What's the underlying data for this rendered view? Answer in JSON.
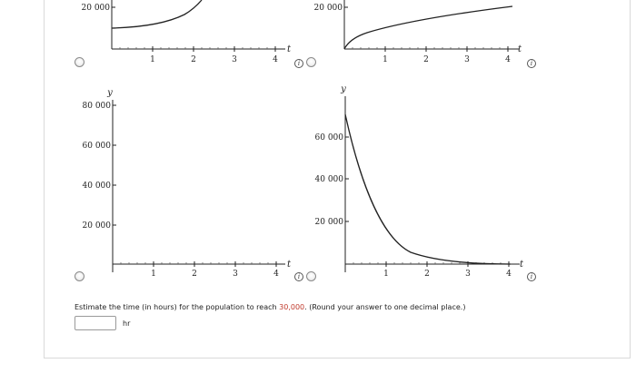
{
  "graphs": [
    {
      "id": "a",
      "y_axis_label": "",
      "x_axis_label": "t",
      "y_ticks": [
        "20 000"
      ],
      "x_ticks": [
        "1",
        "2",
        "3",
        "4"
      ],
      "curve": "increasing-exponential"
    },
    {
      "id": "b",
      "y_axis_label": "",
      "x_axis_label": "t",
      "y_ticks": [
        "20 000"
      ],
      "x_ticks": [
        "1",
        "2",
        "3",
        "4"
      ],
      "curve": "increasing-concave"
    },
    {
      "id": "c",
      "y_axis_label": "y",
      "x_axis_label": "t",
      "y_ticks": [
        "80 000",
        "60 000",
        "40 000",
        "20 000"
      ],
      "x_ticks": [
        "1",
        "2",
        "3",
        "4"
      ],
      "curve": "none"
    },
    {
      "id": "d",
      "y_axis_label": "y",
      "x_axis_label": "t",
      "y_ticks": [
        "60 000",
        "40 000",
        "20 000"
      ],
      "x_ticks": [
        "1",
        "2",
        "3",
        "4"
      ],
      "curve": "decreasing-exponential"
    }
  ],
  "info_icon_glyph": "i",
  "question": {
    "prefix": "Estimate the time (in hours) for the population to reach ",
    "highlight": "30,000",
    "suffix": ". (Round your answer to one decimal place.)",
    "highlight_color": "#c0392b"
  },
  "answer": {
    "value": "",
    "unit": "hr"
  }
}
